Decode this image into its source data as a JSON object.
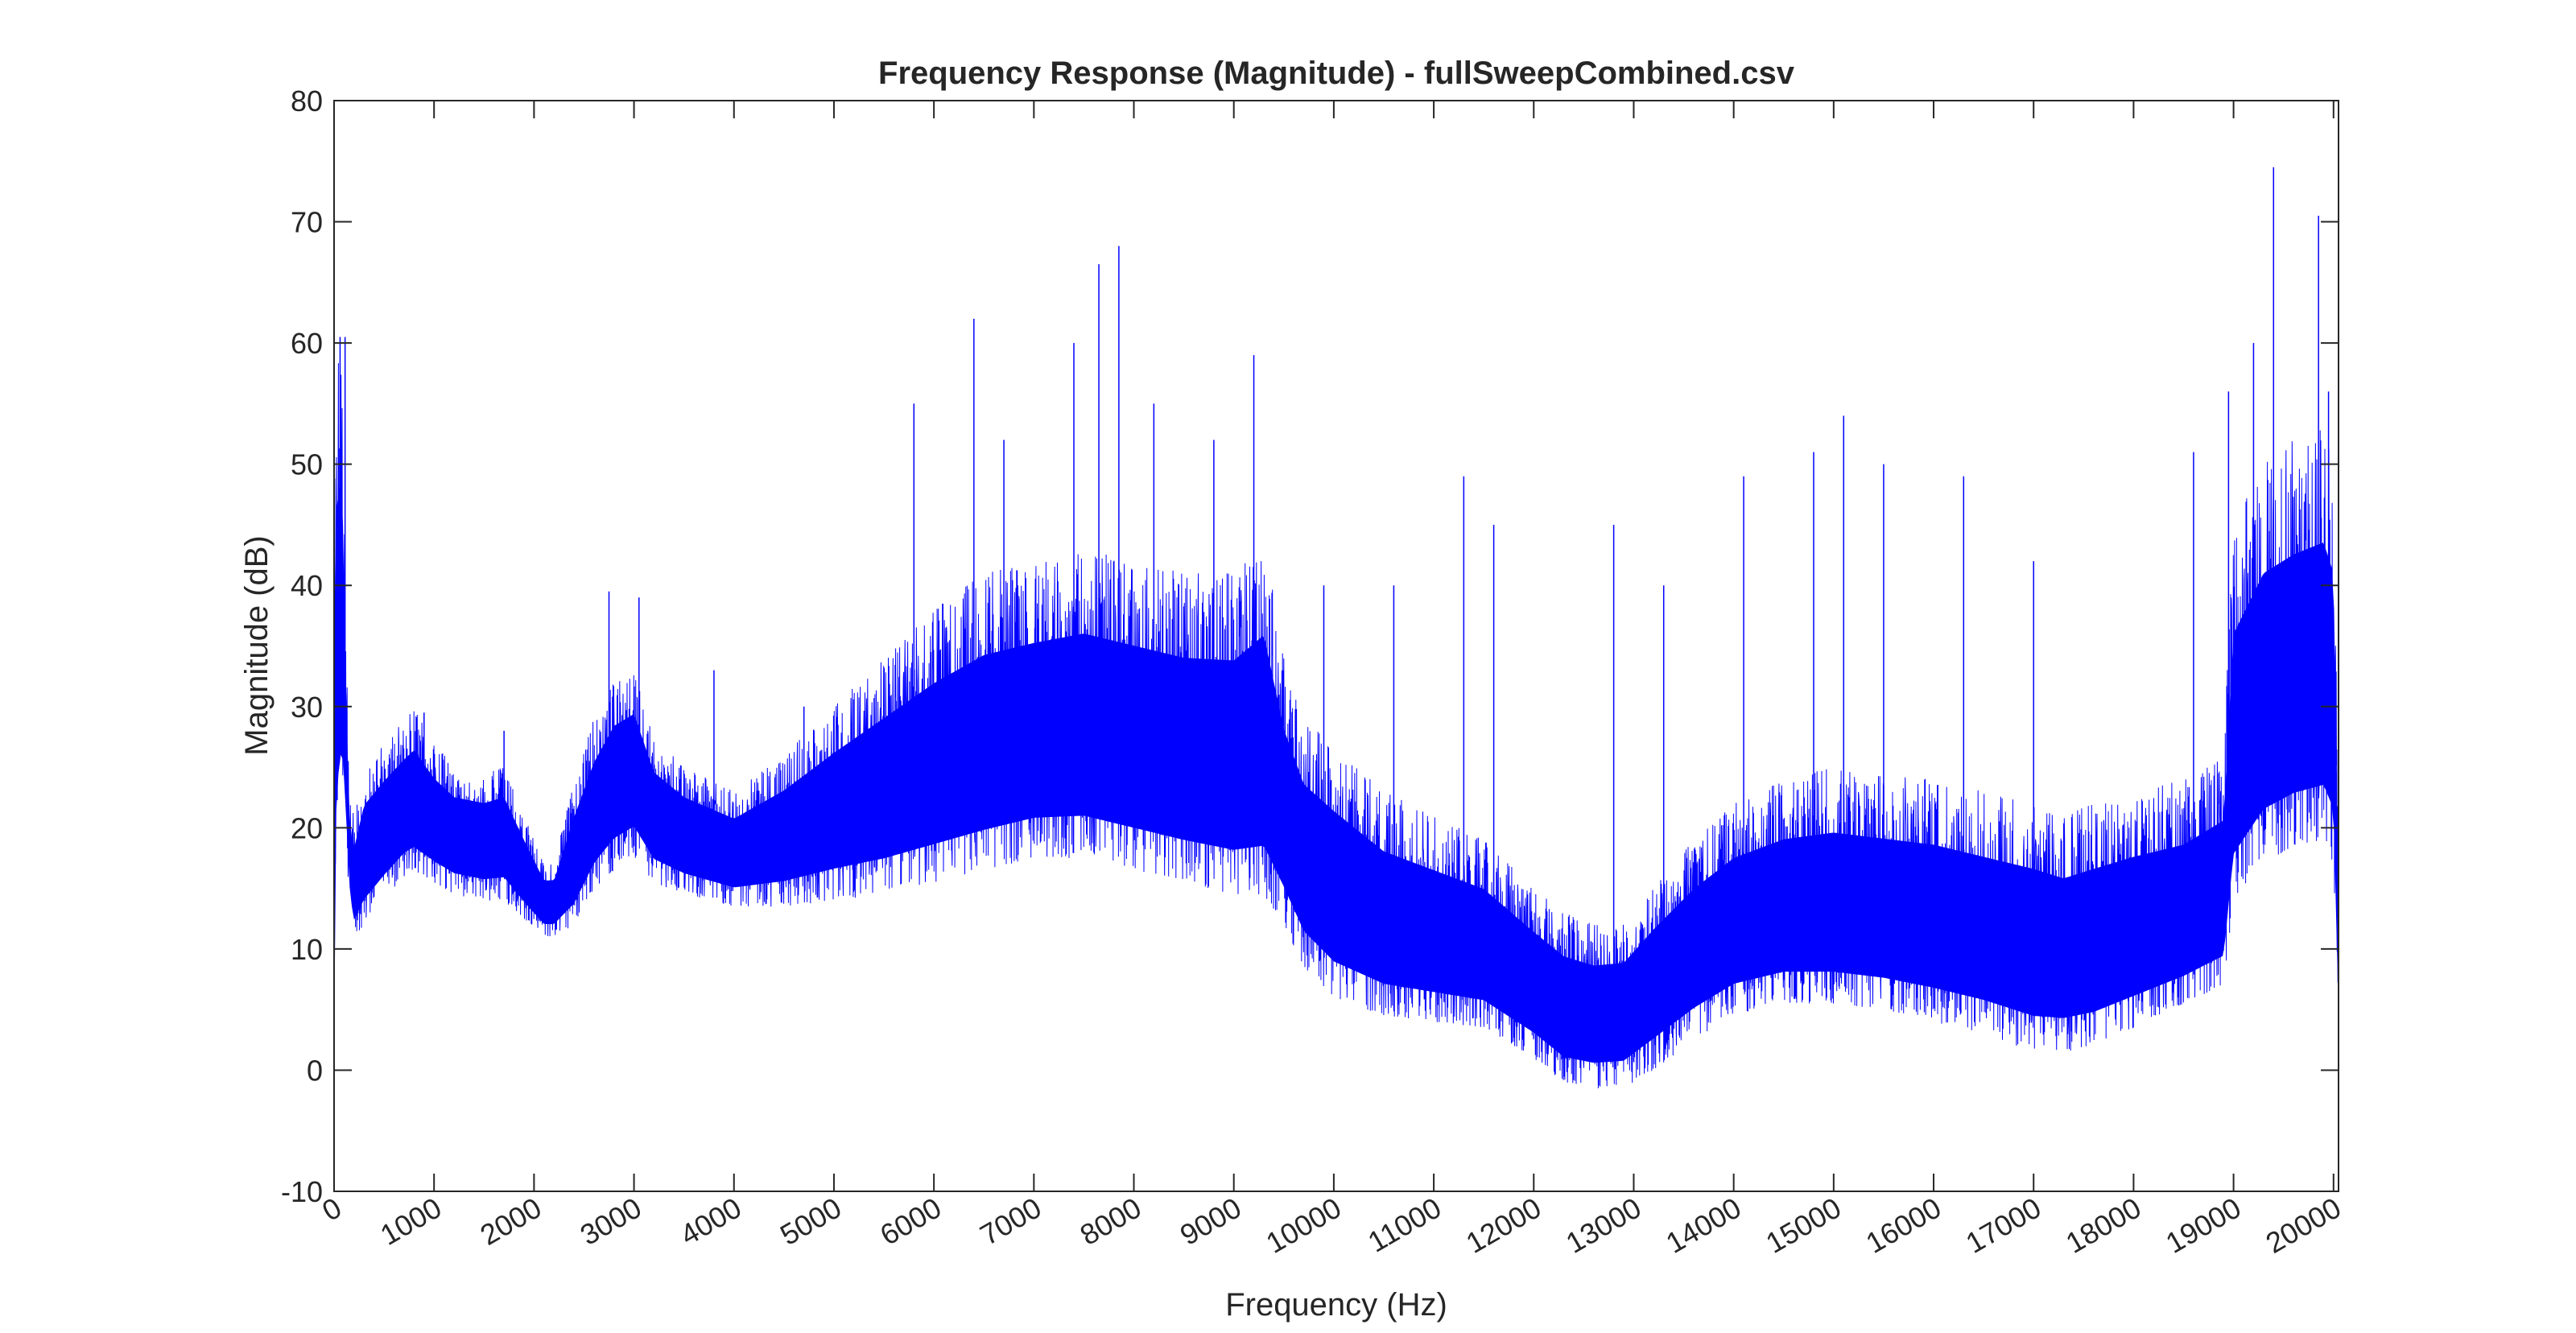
{
  "chart_data": {
    "type": "line",
    "title": "Frequency Response (Magnitude) - fullSweepCombined.csv",
    "xlabel": "Frequency (Hz)",
    "ylabel": "Magnitude (dB)",
    "xlim": [
      0,
      20050
    ],
    "ylim": [
      -10,
      80
    ],
    "grid": true,
    "legend": "none",
    "x_ticks": [
      0,
      1000,
      2000,
      3000,
      4000,
      5000,
      6000,
      7000,
      8000,
      9000,
      10000,
      11000,
      12000,
      13000,
      14000,
      15000,
      16000,
      17000,
      18000,
      19000,
      20000
    ],
    "x_tick_labels": [
      "0",
      "1000",
      "2000",
      "3000",
      "4000",
      "5000",
      "6000",
      "7000",
      "8000",
      "9000",
      "10000",
      "11000",
      "12000",
      "13000",
      "14000",
      "15000",
      "16000",
      "17000",
      "18000",
      "19000",
      "20000"
    ],
    "y_ticks": [
      -10,
      0,
      10,
      20,
      30,
      40,
      50,
      60,
      70,
      80
    ],
    "y_tick_labels": [
      "-10",
      "0",
      "10",
      "20",
      "30",
      "40",
      "50",
      "60",
      "70",
      "80"
    ],
    "line_color": "#0000ff",
    "series": [
      {
        "x": [
          0,
          10,
          40,
          80,
          120,
          160,
          200,
          300,
          500,
          700,
          800,
          1000,
          1200,
          1500,
          1700,
          1900,
          2100,
          2200,
          2400,
          2600,
          2800,
          3000,
          3200,
          3500,
          4000,
          4500,
          5000,
          5500,
          6000,
          6500,
          7000,
          7500,
          8000,
          8500,
          9000,
          9300,
          9500,
          9700,
          10000,
          10500,
          11000,
          11500,
          12000,
          12300,
          12600,
          12900,
          13200,
          13600,
          14000,
          14500,
          15000,
          15500,
          16000,
          16500,
          17000,
          17300,
          17600,
          18000,
          18500,
          18900,
          19000,
          19300,
          19600,
          19900,
          20000,
          20050
        ],
        "lower": [
          -5,
          14,
          20,
          22,
          19,
          13,
          11,
          12,
          14,
          16,
          16.5,
          15.5,
          14.5,
          14,
          14,
          12.5,
          11,
          11,
          12,
          15,
          16.5,
          17.5,
          15.5,
          14.5,
          13.5,
          13.5,
          14,
          14.5,
          15.5,
          16.5,
          17.5,
          17.5,
          16.5,
          15.5,
          14.5,
          14.5,
          12,
          8.5,
          6,
          4.5,
          4,
          3.5,
          1,
          -1,
          -1.5,
          -1.5,
          0,
          2.5,
          4.5,
          5.5,
          5.5,
          5,
          4,
          3,
          1.5,
          1.5,
          2,
          3.5,
          5.5,
          7,
          14,
          17,
          18.5,
          19,
          17,
          3
        ],
        "mid": [
          15,
          30,
          32,
          36,
          25,
          17,
          15,
          18,
          20,
          21.5,
          22,
          20.5,
          19.5,
          19,
          19.5,
          16.5,
          14,
          14,
          17,
          21,
          24,
          25,
          21,
          19.5,
          18,
          19.5,
          21.5,
          23,
          24.5,
          26,
          27,
          27.5,
          26.5,
          25.5,
          25,
          26,
          21,
          17,
          14.5,
          12,
          11,
          10,
          7,
          5,
          4.5,
          5,
          7.5,
          10,
          12,
          13,
          13,
          12.5,
          12,
          11,
          10,
          9.5,
          10,
          11,
          12,
          14,
          25,
          30,
          31,
          32,
          30,
          8
        ],
        "upper": [
          45,
          58,
          60,
          60,
          35,
          22,
          21,
          25,
          27,
          29,
          30,
          27,
          25,
          24.5,
          25,
          21,
          17,
          17,
          24,
          29,
          32,
          33,
          27.5,
          25,
          23,
          26,
          30,
          34,
          38,
          41,
          42,
          43,
          42,
          41,
          41,
          44,
          34,
          29,
          27,
          23,
          21,
          19,
          15,
          13,
          12,
          12,
          15,
          19,
          22,
          24,
          25,
          24.5,
          24,
          23,
          22,
          21,
          22,
          23,
          24,
          26,
          45,
          50,
          52,
          53,
          50,
          18
        ]
      }
    ],
    "peaks": [
      {
        "x": 60,
        "y": 60.5
      },
      {
        "x": 110,
        "y": 60.5
      },
      {
        "x": 900,
        "y": 29.5
      },
      {
        "x": 1700,
        "y": 28
      },
      {
        "x": 2750,
        "y": 39.5
      },
      {
        "x": 3050,
        "y": 39
      },
      {
        "x": 3800,
        "y": 33
      },
      {
        "x": 4700,
        "y": 30
      },
      {
        "x": 5800,
        "y": 55
      },
      {
        "x": 6400,
        "y": 62
      },
      {
        "x": 6700,
        "y": 52
      },
      {
        "x": 7400,
        "y": 60
      },
      {
        "x": 7650,
        "y": 66.5
      },
      {
        "x": 7850,
        "y": 68
      },
      {
        "x": 8200,
        "y": 55
      },
      {
        "x": 8800,
        "y": 52
      },
      {
        "x": 9200,
        "y": 59
      },
      {
        "x": 9900,
        "y": 40
      },
      {
        "x": 10600,
        "y": 40
      },
      {
        "x": 11300,
        "y": 49
      },
      {
        "x": 11600,
        "y": 45
      },
      {
        "x": 12800,
        "y": 45
      },
      {
        "x": 13300,
        "y": 40
      },
      {
        "x": 14100,
        "y": 49
      },
      {
        "x": 14800,
        "y": 51
      },
      {
        "x": 15100,
        "y": 54
      },
      {
        "x": 15500,
        "y": 50
      },
      {
        "x": 16300,
        "y": 49
      },
      {
        "x": 17000,
        "y": 42
      },
      {
        "x": 18600,
        "y": 51
      },
      {
        "x": 18950,
        "y": 56
      },
      {
        "x": 19200,
        "y": 60
      },
      {
        "x": 19400,
        "y": 74.5
      },
      {
        "x": 19850,
        "y": 70.5
      },
      {
        "x": 19950,
        "y": 56
      }
    ]
  }
}
